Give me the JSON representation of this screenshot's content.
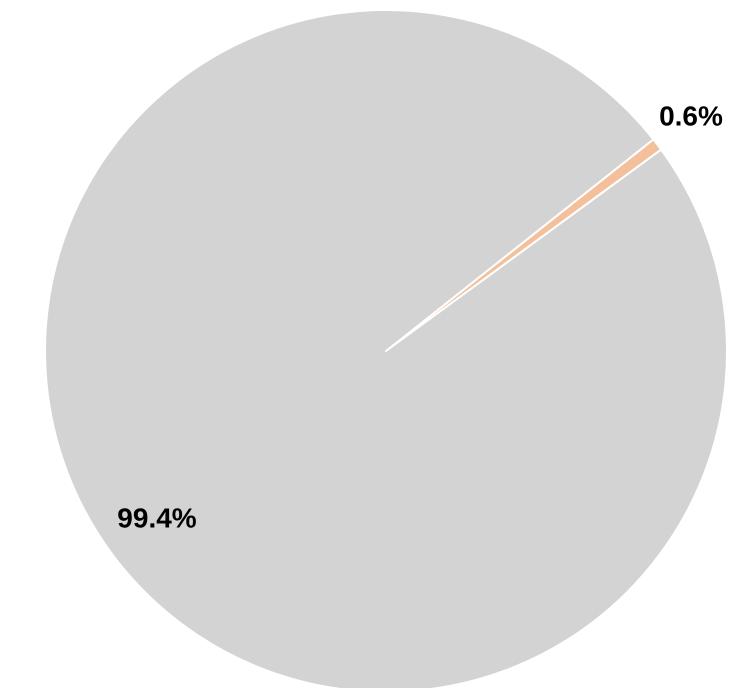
{
  "chart_data": {
    "type": "pie",
    "title": "",
    "slices": [
      {
        "value": 0.6,
        "label": "0.6%",
        "color": "#f4c09c"
      },
      {
        "value": 99.4,
        "label": "99.4%",
        "color": "#d3d3d3"
      }
    ],
    "separator_color": "#ffffff"
  }
}
